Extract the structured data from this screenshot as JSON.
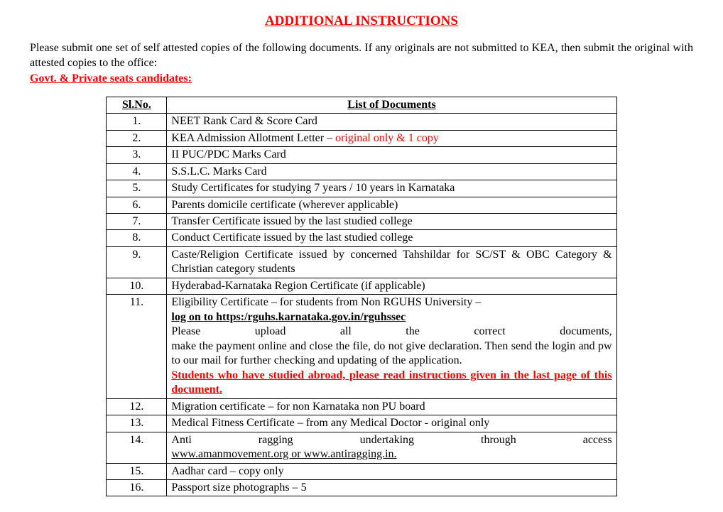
{
  "page_title": "ADDITIONAL INSTRUCTIONS",
  "intro": "Please submit one set of self attested copies of the following documents.  If any originals are not submitted to KEA, then submit the original with attested copies to the office:",
  "candidates_heading": "Govt. & Private seats candidates:",
  "columns": {
    "sl": "Sl.No.",
    "doc": "List of Documents"
  },
  "rows": {
    "r1": {
      "sl": "1.",
      "text": "NEET Rank Card & Score Card"
    },
    "r2": {
      "sl": "2.",
      "prefix": "KEA Admission Allotment Letter – ",
      "highlight": "original only & 1 copy"
    },
    "r3": {
      "sl": "3.",
      "text": "II PUC/PDC Marks Card"
    },
    "r4": {
      "sl": "4.",
      "text": "S.S.L.C.  Marks Card"
    },
    "r5": {
      "sl": "5.",
      "text": "Study Certificates for studying 7 years / 10 years in Karnataka"
    },
    "r6": {
      "sl": "6.",
      "text": "Parents domicile certificate (wherever applicable)"
    },
    "r7": {
      "sl": "7.",
      "text": "Transfer Certificate issued by the last studied college"
    },
    "r8": {
      "sl": "8.",
      "text": "Conduct Certificate  issued by the last studied college"
    },
    "r9": {
      "sl": "9.",
      "text": "Caste/Religion Certificate issued by concerned Tahshildar for SC/ST & OBC Category & Christian category students"
    },
    "r10": {
      "sl": "10.",
      "text": "Hyderabad-Karnataka Region Certificate (if applicable)"
    },
    "r11": {
      "sl": "11.",
      "line1": "Eligibility Certificate –  for students from Non RGUHS University –",
      "line2": "log on to https:/rguhs.karnataka.gov.in/rguhssec",
      "line3": "Please upload all the correct documents,",
      "line4": "make the payment online and close the file, do not give declaration. Then send the login and pw to our mail for further checking and updating of the application.",
      "line5": "Students who have studied abroad, please read instructions given in the last page of this document."
    },
    "r12": {
      "sl": "12.",
      "text": "Migration certificate – for non Karnataka non PU board"
    },
    "r13": {
      "sl": "13.",
      "text": "Medical Fitness Certificate – from any Medical Doctor - original only"
    },
    "r14": {
      "sl": "14.",
      "line1": "Anti ragging undertaking through access",
      "link": "www.amanmovement.org or www.antiragging.in."
    },
    "r15": {
      "sl": "15.",
      "text": "Aadhar card – copy only"
    },
    "r16": {
      "sl": "16.",
      "text": "Passport size photographs – 5"
    }
  }
}
